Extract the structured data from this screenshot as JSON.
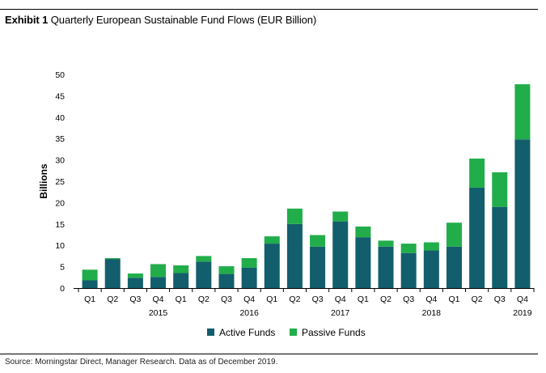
{
  "header": {
    "exhibit_label": "Exhibit 1",
    "title": "Quarterly European Sustainable Fund Flows (EUR Billion)"
  },
  "footer": {
    "source": "Source: Morningstar Direct, Manager Research. Data as of December 2019."
  },
  "colors": {
    "active": "#135e6c",
    "passive": "#21ad4a",
    "axis": "#000000"
  },
  "chart_data": {
    "type": "bar",
    "stacked": true,
    "ylabel": "Billions",
    "xlabel": "",
    "ylim": [
      0,
      50
    ],
    "yticks": [
      0,
      5,
      10,
      15,
      20,
      25,
      30,
      35,
      40,
      45,
      50
    ],
    "grid": false,
    "legend_position": "bottom",
    "categories": [
      "Q1",
      "Q2",
      "Q3",
      "Q4",
      "Q1",
      "Q2",
      "Q3",
      "Q4",
      "Q1",
      "Q2",
      "Q3",
      "Q4",
      "Q1",
      "Q2",
      "Q3",
      "Q4",
      "Q1",
      "Q2",
      "Q3",
      "Q4"
    ],
    "year_labels": [
      {
        "year": "2015",
        "under_index": 3
      },
      {
        "year": "2016",
        "under_index": 7
      },
      {
        "year": "2017",
        "under_index": 11
      },
      {
        "year": "2018",
        "under_index": 15
      },
      {
        "year": "2019",
        "under_index": 19
      }
    ],
    "series": [
      {
        "name": "Active Funds",
        "color": "#135e6c",
        "values": [
          1.8,
          6.8,
          2.4,
          2.6,
          3.5,
          6.2,
          3.3,
          4.8,
          10.4,
          15.0,
          9.7,
          15.6,
          11.9,
          9.7,
          8.2,
          8.8,
          9.7,
          23.5,
          19.0,
          34.8
        ]
      },
      {
        "name": "Passive Funds",
        "color": "#21ad4a",
        "values": [
          2.5,
          0.2,
          1.0,
          3.0,
          1.8,
          1.3,
          1.8,
          2.2,
          1.7,
          3.6,
          2.7,
          2.3,
          2.5,
          1.4,
          2.2,
          1.9,
          5.6,
          6.8,
          8.1,
          12.9
        ]
      }
    ]
  }
}
